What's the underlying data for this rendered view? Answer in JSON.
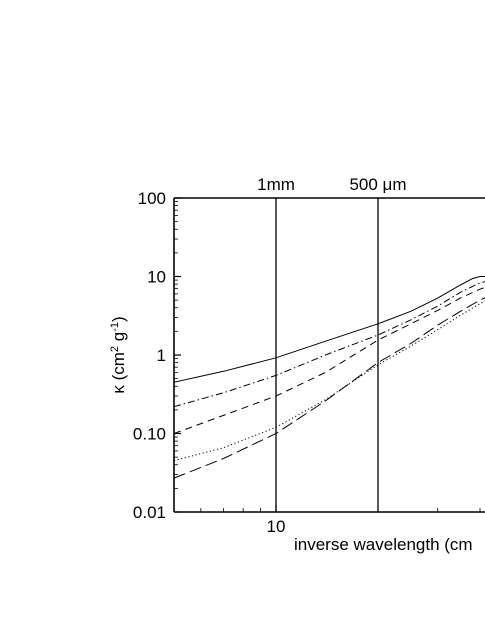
{
  "chart_data": {
    "type": "line",
    "xlabel_main": "inverse wavelength (cm",
    "ylabel_main": "κ (cm",
    "ylabel_sup1": "2",
    "ylabel_mid": " g",
    "ylabel_sup2": "-1",
    "ylabel_end": ")",
    "x_scale": "log",
    "y_scale": "log",
    "xlim": [
      5,
      60
    ],
    "ylim": [
      0.01,
      100
    ],
    "x_ticks": [
      {
        "value": 10,
        "label": "10"
      }
    ],
    "y_ticks": [
      {
        "value": 100,
        "label": "100"
      },
      {
        "value": 10,
        "label": "10"
      },
      {
        "value": 1,
        "label": "1"
      },
      {
        "value": 0.1,
        "label": "0.10"
      },
      {
        "value": 0.01,
        "label": "0.01"
      }
    ],
    "vertical_markers": [
      {
        "value": 10,
        "label": "1mm"
      },
      {
        "value": 20,
        "label": "500 μm"
      }
    ],
    "grid": false,
    "series": [
      {
        "style": "solid",
        "x": [
          5,
          7,
          10,
          14,
          20,
          25,
          30,
          35,
          38,
          40,
          45
        ],
        "y": [
          0.45,
          0.62,
          0.92,
          1.5,
          2.5,
          3.6,
          5.3,
          7.8,
          9.4,
          10,
          10
        ]
      },
      {
        "style": "dash-dot",
        "x": [
          5,
          7,
          10,
          14,
          20,
          25,
          30,
          35,
          40,
          45
        ],
        "y": [
          0.22,
          0.33,
          0.55,
          1.0,
          1.8,
          2.8,
          4.2,
          6.3,
          8.3,
          9.4
        ]
      },
      {
        "style": "dashed",
        "x": [
          5,
          7,
          10,
          14,
          20,
          25,
          30,
          35,
          40,
          45
        ],
        "y": [
          0.1,
          0.17,
          0.3,
          0.6,
          1.55,
          2.5,
          3.7,
          5.3,
          6.9,
          8.3
        ]
      },
      {
        "style": "dotted",
        "x": [
          5,
          7,
          10,
          14,
          20,
          25,
          30,
          35,
          40,
          45
        ],
        "y": [
          0.045,
          0.066,
          0.12,
          0.27,
          0.75,
          1.3,
          2.1,
          3.2,
          4.5,
          6.0
        ]
      },
      {
        "style": "long-dash",
        "x": [
          5,
          7,
          10,
          14,
          20,
          25,
          30,
          35,
          40,
          45
        ],
        "y": [
          0.027,
          0.048,
          0.1,
          0.26,
          0.8,
          1.4,
          2.4,
          3.6,
          5.0,
          6.4
        ]
      }
    ]
  }
}
